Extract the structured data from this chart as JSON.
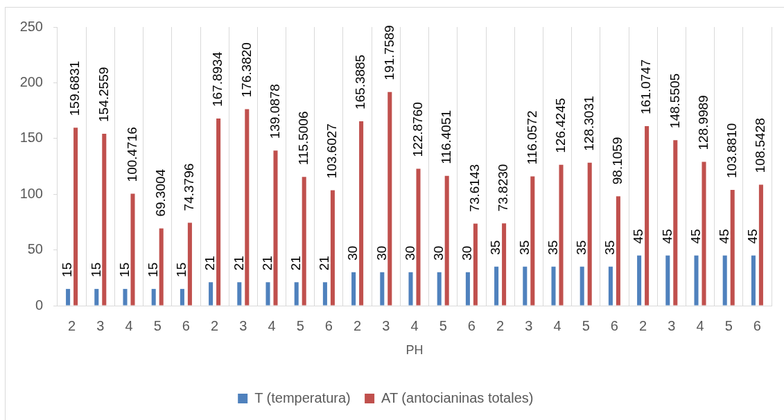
{
  "chart_data": {
    "type": "bar",
    "xlabel": "PH",
    "categories": [
      "2",
      "3",
      "4",
      "5",
      "6",
      "2",
      "3",
      "4",
      "5",
      "6",
      "2",
      "3",
      "4",
      "5",
      "6",
      "2",
      "3",
      "4",
      "5",
      "6",
      "2",
      "3",
      "4",
      "5",
      "6"
    ],
    "series": [
      {
        "name": "T (temperatura)",
        "color": "#4f81bd",
        "values": [
          15,
          15,
          15,
          15,
          15,
          21,
          21,
          21,
          21,
          21,
          30,
          30,
          30,
          30,
          30,
          35,
          35,
          35,
          35,
          35,
          45,
          45,
          45,
          45,
          45
        ],
        "value_labels": [
          "15",
          "15",
          "15",
          "15",
          "15",
          "21",
          "21",
          "21",
          "21",
          "21",
          "30",
          "30",
          "30",
          "30",
          "30",
          "35",
          "35",
          "35",
          "35",
          "35",
          "45",
          "45",
          "45",
          "45",
          "45"
        ]
      },
      {
        "name": "AT (antocianinas totales)",
        "color": "#c0504d",
        "values": [
          159.6831,
          154.2559,
          100.4716,
          69.3004,
          74.3796,
          167.8934,
          176.382,
          139.0878,
          115.5006,
          103.6027,
          165.3885,
          191.7589,
          122.876,
          116.4051,
          73.6143,
          73.823,
          116.0572,
          126.4245,
          128.3031,
          98.1059,
          161.0747,
          148.5505,
          128.9989,
          103.881,
          108.5428
        ],
        "value_labels": [
          "159.6831",
          "154.2559",
          "100.4716",
          "69.3004",
          "74.3796",
          "167.8934",
          "176.3820",
          "139.0878",
          "115.5006",
          "103.6027",
          "165.3885",
          "191.7589",
          "122.8760",
          "116.4051",
          "73.6143",
          "73.8230",
          "116.0572",
          "126.4245",
          "128.3031",
          "98.1059",
          "161.0747",
          "148.5505",
          "128.9989",
          "103.8810",
          "108.5428"
        ]
      }
    ],
    "ylim": [
      0,
      250
    ],
    "yticks": [
      0,
      50,
      100,
      150,
      200,
      250
    ],
    "grid": "x",
    "legend": "bottom"
  }
}
